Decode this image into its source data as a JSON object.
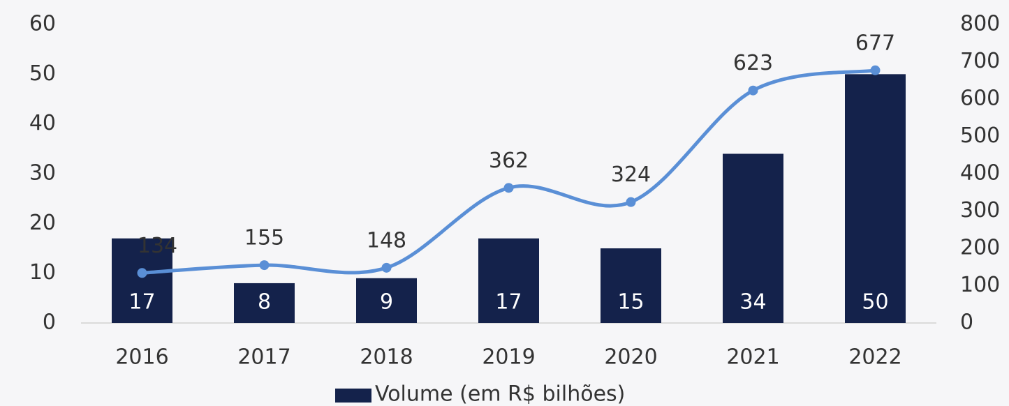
{
  "chart_data": {
    "type": "bar",
    "categories": [
      "2016",
      "2017",
      "2018",
      "2019",
      "2020",
      "2021",
      "2022"
    ],
    "series": [
      {
        "name": "Volume (em R$ bilhões)",
        "color": "#14224b",
        "values": [
          17,
          8,
          9,
          17,
          15,
          34,
          50
        ]
      },
      {
        "type": "line",
        "axis": "y2",
        "color": "#5a8fd6",
        "values": [
          134,
          155,
          148,
          362,
          324,
          623,
          677
        ]
      }
    ],
    "ylim": [
      0,
      60
    ],
    "yticks": [
      0,
      10,
      20,
      30,
      40,
      50,
      60
    ],
    "y2lim": [
      0,
      800
    ],
    "y2ticks": [
      0,
      100,
      200,
      300,
      400,
      500,
      600,
      700,
      800
    ],
    "legend": "bottom"
  }
}
